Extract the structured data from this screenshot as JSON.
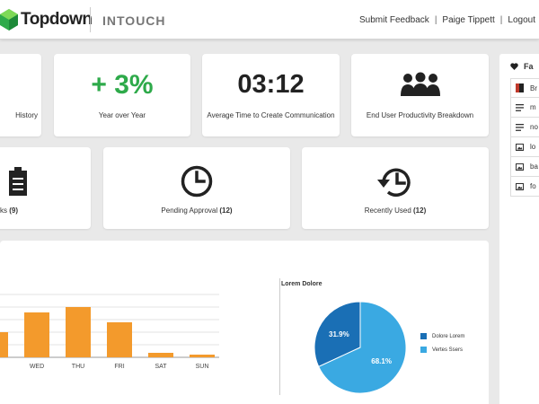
{
  "header": {
    "logo_text": "Topdown",
    "product": "INTOUCH",
    "nav": [
      "Submit Feedback",
      "Paige Tippett",
      "Logout"
    ]
  },
  "stats": [
    {
      "value": "",
      "label": "History"
    },
    {
      "value": "+ 3%",
      "label": "Year over Year"
    },
    {
      "value": "03:12",
      "label": "Average Time to Create Communication"
    },
    {
      "value_icon": "people-group-icon",
      "label": "End User Productivity Breakdown"
    }
  ],
  "tasks": [
    {
      "icon": "clipboard-icon",
      "label": "ks",
      "count": "(9)"
    },
    {
      "icon": "clock-icon",
      "label": "Pending Approval",
      "count": "(12)"
    },
    {
      "icon": "history-icon",
      "label": "Recently Used",
      "count": "(12)"
    }
  ],
  "favorites": {
    "title": "Fa",
    "items": [
      {
        "icon": "red-doc-icon",
        "label": "Br"
      },
      {
        "icon": "text-lines-icon",
        "label": "m"
      },
      {
        "icon": "text-lines-icon",
        "label": "no"
      },
      {
        "icon": "image-icon",
        "label": "lo"
      },
      {
        "icon": "image-icon",
        "label": "ba"
      },
      {
        "icon": "image-icon",
        "label": "fo"
      }
    ]
  },
  "colors": {
    "green": "#2eaa4a",
    "orange": "#f39a2c",
    "pie_dark": "#1a6fb5",
    "pie_light": "#3aa9e2"
  },
  "chart_data": [
    {
      "type": "bar",
      "categories": [
        "",
        "WED",
        "THU",
        "FRI",
        "SAT",
        "SUN"
      ],
      "values": [
        28,
        50,
        56,
        39,
        5,
        3
      ],
      "ylim": [
        0,
        70
      ],
      "grid": true
    },
    {
      "type": "pie",
      "title": "Lorem Dolore",
      "labels": [
        "Dolore Lorem",
        "Vertes Ssers"
      ],
      "values": [
        31.9,
        68.1
      ],
      "value_labels": [
        "31.9%",
        "68.1%"
      ],
      "legend": "right"
    }
  ]
}
